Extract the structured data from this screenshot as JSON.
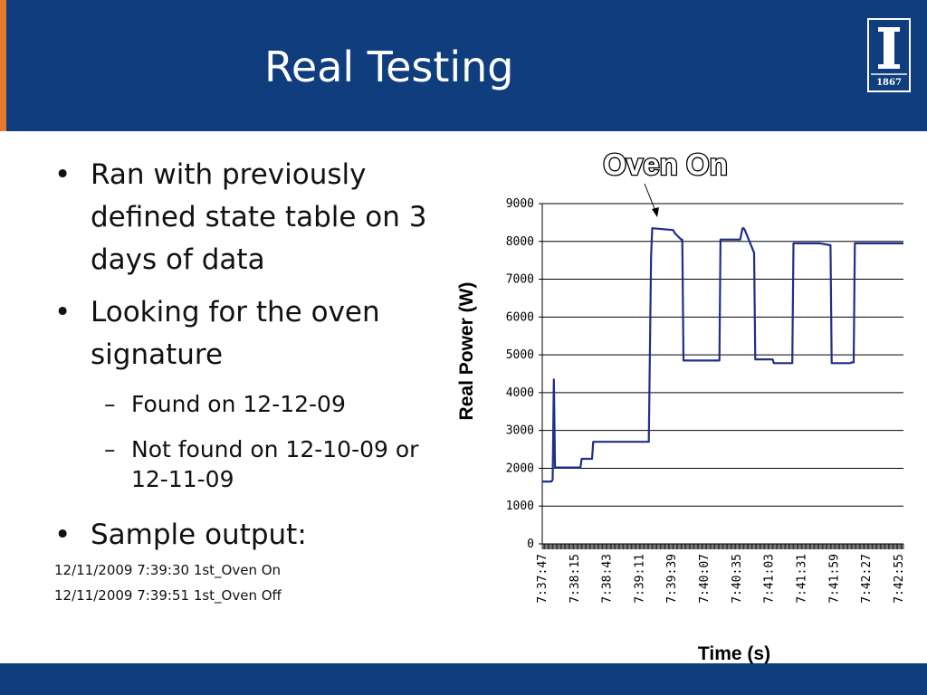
{
  "slide": {
    "title": "Real Testing",
    "logo_text": "1867",
    "colors": {
      "header": "#0f3d7d",
      "accent": "#e8782a",
      "series": "#1f2f8a"
    }
  },
  "bullets": [
    {
      "text": "Ran with previously defined state table on 3 days of data",
      "sub": []
    },
    {
      "text": "Looking for the oven signature",
      "sub": [
        "Found on 12-12-09",
        "Not found on 12-10-09 or 12-11-09"
      ]
    },
    {
      "text": "Sample output:",
      "sub": []
    }
  ],
  "bullet_glyph": "•",
  "sub_glyph": "–",
  "sample_output": [
    "12/11/2009 7:39:30 1st_Oven On",
    "12/11/2009 7:39:51 1st_Oven Off"
  ],
  "chart_data": {
    "type": "line",
    "annotation": "Oven On",
    "xlabel": "Time (s)",
    "ylabel": "Real Power (W)",
    "ylim": [
      0,
      9000
    ],
    "yticks": [
      0,
      1000,
      2000,
      3000,
      4000,
      5000,
      6000,
      7000,
      8000,
      9000
    ],
    "xlim": [
      "7:37:47",
      "7:42:59"
    ],
    "xticks": [
      "7:37:47",
      "7:38:15",
      "7:38:43",
      "7:39:11",
      "7:39:39",
      "7:40:07",
      "7:40:35",
      "7:41:03",
      "7:41:31",
      "7:41:59",
      "7:42:27",
      "7:42:55"
    ],
    "grid": "horizontal",
    "series": [
      {
        "x": [
          "7:37:47",
          "7:37:55",
          "7:37:56",
          "7:37:57",
          "7:37:58",
          "7:38:20",
          "7:38:21",
          "7:38:30",
          "7:38:31",
          "7:39:18",
          "7:39:19",
          "7:39:21",
          "7:39:22",
          "7:39:40",
          "7:39:42",
          "7:39:47",
          "7:39:48",
          "7:39:49",
          "7:39:50",
          "7:39:51",
          "7:40:20",
          "7:40:21",
          "7:40:22",
          "7:40:38",
          "7:40:40",
          "7:40:41",
          "7:40:42",
          "7:40:50",
          "7:40:51",
          "7:41:06",
          "7:41:07",
          "7:41:23",
          "7:41:24",
          "7:41:46",
          "7:41:47",
          "7:41:56",
          "7:41:57",
          "7:42:13",
          "7:42:14",
          "7:42:16",
          "7:42:17",
          "7:42:59"
        ],
        "y": [
          1650,
          1650,
          1700,
          4350,
          2020,
          2020,
          2250,
          2250,
          2700,
          2700,
          2700,
          7600,
          8350,
          8300,
          8200,
          8050,
          8050,
          4850,
          4850,
          4850,
          4850,
          8050,
          8050,
          8050,
          8350,
          8350,
          8300,
          7700,
          4880,
          4880,
          4780,
          4780,
          7950,
          7950,
          7950,
          7900,
          4780,
          4780,
          4800,
          4800,
          7950,
          7950
        ]
      }
    ]
  }
}
